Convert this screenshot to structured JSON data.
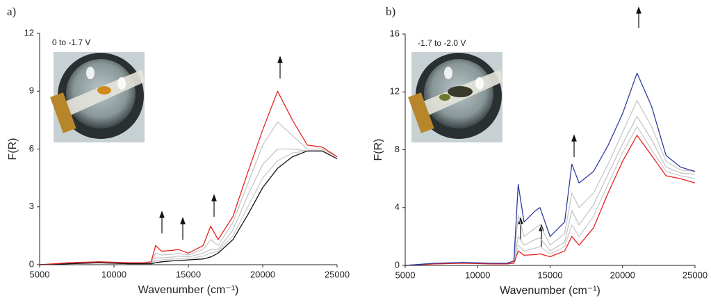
{
  "chart_data": [
    {
      "type": "line",
      "panel_label": "a)",
      "annotation": "0 to -1.7 V",
      "xlabel": "Wavenumber (cm⁻¹)",
      "ylabel": "F(R)",
      "xlim": [
        5000,
        25000
      ],
      "xticks": [
        5000,
        10000,
        15000,
        20000,
        25000
      ],
      "ylim": [
        0,
        12
      ],
      "yticks": [
        0,
        3,
        6,
        9,
        12
      ],
      "x": [
        5000,
        7000,
        9000,
        11000,
        12000,
        12500,
        12800,
        13200,
        14000,
        14300,
        15000,
        16000,
        16500,
        17000,
        18000,
        19000,
        20000,
        21000,
        22000,
        23000,
        24000,
        25000
      ],
      "series": [
        {
          "color": "#cccccc",
          "values": [
            0,
            0.06,
            0.1,
            0.06,
            0.06,
            0.06,
            0.2,
            0.25,
            0.3,
            0.3,
            0.3,
            0.45,
            0.6,
            0.7,
            1.5,
            3.0,
            4.5,
            5.4,
            5.8,
            5.9,
            5.9,
            5.5
          ]
        },
        {
          "color": "#c4c4c4",
          "values": [
            0,
            0.07,
            0.1,
            0.07,
            0.07,
            0.08,
            0.35,
            0.35,
            0.4,
            0.45,
            0.4,
            0.6,
            0.8,
            0.8,
            1.8,
            3.6,
            5.2,
            6.0,
            6.0,
            5.9,
            5.9,
            5.5
          ]
        },
        {
          "color": "#c8c8c8",
          "values": [
            0,
            0.08,
            0.12,
            0.08,
            0.08,
            0.1,
            0.6,
            0.5,
            0.55,
            0.6,
            0.5,
            0.8,
            1.3,
            1.0,
            2.2,
            4.2,
            6.2,
            7.4,
            6.7,
            6.0,
            6.0,
            5.6
          ]
        },
        {
          "color": "#111111",
          "values": [
            0,
            0.05,
            0.1,
            0.05,
            0.05,
            0.05,
            0.1,
            0.15,
            0.2,
            0.2,
            0.25,
            0.3,
            0.4,
            0.6,
            1.3,
            2.6,
            4.0,
            5.0,
            5.6,
            5.9,
            5.9,
            5.5
          ]
        },
        {
          "color": "#e8211d",
          "values": [
            0,
            0.1,
            0.15,
            0.1,
            0.1,
            0.15,
            1.0,
            0.7,
            0.75,
            0.8,
            0.6,
            1.0,
            2.0,
            1.3,
            2.5,
            4.8,
            7.0,
            9.0,
            7.5,
            6.2,
            6.1,
            5.6
          ]
        }
      ]
    },
    {
      "type": "line",
      "panel_label": "b)",
      "annotation": "-1.7 to -2.0 V",
      "xlabel": "Wavenumber (cm⁻¹)",
      "ylabel": "F(R)",
      "xlim": [
        5000,
        25000
      ],
      "xticks": [
        5000,
        10000,
        15000,
        20000,
        25000
      ],
      "ylim": [
        0,
        16
      ],
      "yticks": [
        0,
        4,
        8,
        12,
        16
      ],
      "x": [
        5000,
        7000,
        9000,
        11000,
        12000,
        12500,
        12800,
        13200,
        14000,
        14300,
        15000,
        16000,
        16500,
        17000,
        18000,
        19000,
        20000,
        21000,
        22000,
        23000,
        24000,
        25000
      ],
      "series": [
        {
          "color": "#cccccc",
          "values": [
            0,
            0.1,
            0.16,
            0.1,
            0.1,
            0.18,
            1.4,
            1.0,
            1.2,
            1.3,
            0.8,
            1.3,
            2.8,
            2.0,
            3.4,
            5.6,
            7.8,
            9.6,
            8.0,
            6.5,
            6.2,
            6.0
          ]
        },
        {
          "color": "#c4c4c4",
          "values": [
            0,
            0.11,
            0.17,
            0.11,
            0.11,
            0.2,
            2.0,
            1.4,
            1.8,
            1.9,
            1.0,
            1.6,
            3.8,
            2.8,
            4.2,
            6.3,
            8.4,
            10.3,
            8.7,
            6.8,
            6.4,
            6.3
          ]
        },
        {
          "color": "#c8c8c8",
          "values": [
            0,
            0.12,
            0.18,
            0.12,
            0.12,
            0.25,
            3.5,
            2.0,
            2.6,
            2.8,
            1.4,
            2.2,
            5.0,
            4.0,
            5.0,
            7.0,
            9.2,
            11.4,
            9.6,
            7.2,
            6.6,
            6.5
          ]
        },
        {
          "color": "#e8211d",
          "values": [
            0,
            0.1,
            0.15,
            0.1,
            0.1,
            0.15,
            1.0,
            0.7,
            0.75,
            0.8,
            0.6,
            1.0,
            2.0,
            1.4,
            2.6,
            5.0,
            7.2,
            9.0,
            7.6,
            6.2,
            6.0,
            5.7
          ]
        },
        {
          "color": "#2f3d9c",
          "values": [
            0,
            0.15,
            0.2,
            0.15,
            0.15,
            0.3,
            5.6,
            3.0,
            3.8,
            4.0,
            2.0,
            3.0,
            7.0,
            5.7,
            6.5,
            8.3,
            10.5,
            13.3,
            11.0,
            7.6,
            6.8,
            6.5
          ]
        }
      ]
    }
  ]
}
